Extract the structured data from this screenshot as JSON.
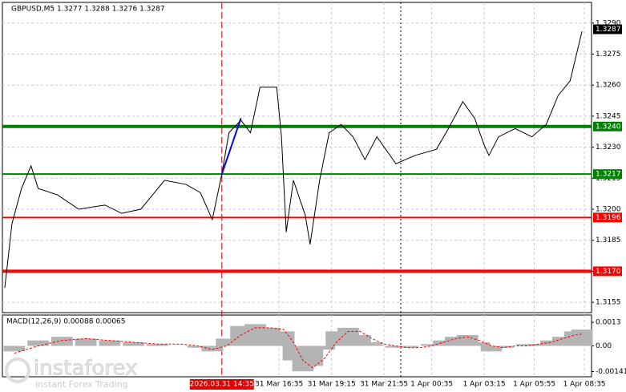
{
  "chart_data": {
    "type": "line",
    "title": "GBPUSD,M5  1.3277 1.3288 1.3276 1.3287",
    "xlim": [
      0,
      247
    ],
    "ylim": [
      1.315,
      1.33
    ],
    "x": [
      1,
      4,
      8,
      12,
      15,
      23,
      32,
      43,
      50,
      58,
      68,
      77,
      83,
      88,
      92,
      95,
      100,
      104,
      108,
      115,
      117,
      119,
      122,
      127,
      129,
      133,
      137,
      142,
      147,
      152,
      157,
      165,
      173,
      182,
      187,
      193,
      198,
      202,
      204,
      208,
      215,
      222,
      228,
      233,
      238,
      243
    ],
    "series": [
      {
        "name": "GBPUSD",
        "color": "#000000",
        "values": [
          1.3162,
          1.3193,
          1.321,
          1.3221,
          1.321,
          1.3207,
          1.32,
          1.3202,
          1.3198,
          1.32,
          1.3214,
          1.3212,
          1.3208,
          1.3195,
          1.3217,
          1.3237,
          1.3243,
          1.3237,
          1.3259,
          1.3259,
          1.3235,
          1.3189,
          1.3214,
          1.3197,
          1.3183,
          1.3214,
          1.3237,
          1.3241,
          1.3235,
          1.3224,
          1.3235,
          1.3222,
          1.3226,
          1.3229,
          1.3239,
          1.3252,
          1.3244,
          1.3231,
          1.3226,
          1.3235,
          1.3239,
          1.3235,
          1.3241,
          1.3255,
          1.3262,
          1.3286
        ]
      }
    ],
    "trend_line": {
      "color": "#0000ff",
      "x": [
        92,
        100
      ],
      "values": [
        1.3217,
        1.3244
      ]
    },
    "vlines": [
      {
        "x": 92,
        "color": "#e00000"
      },
      {
        "x": 167,
        "color": "#000000"
      }
    ],
    "levels": [
      {
        "values": 1.324,
        "value_labels": "1.3240",
        "color": "#008000",
        "width": 4
      },
      {
        "values": 1.3217,
        "value_labels": "1.3217",
        "color": "#008000",
        "width": 2
      },
      {
        "values": 1.3196,
        "value_labels": "1.3196",
        "color": "#ff0000",
        "width": 2
      },
      {
        "values": 1.317,
        "value_labels": "1.3170",
        "color": "#ff0000",
        "width": 4
      }
    ],
    "last_price": {
      "values": 1.3287,
      "value_labels": "1.3287"
    },
    "yticks": [
      {
        "value": 1.329,
        "label": "1.3290"
      },
      {
        "value": 1.3275,
        "label": "1.3275"
      },
      {
        "value": 1.326,
        "label": "1.3260"
      },
      {
        "value": 1.3245,
        "label": "1.3245"
      },
      {
        "value": 1.323,
        "label": "1.3230"
      },
      {
        "value": 1.3215,
        "label": "1.3215"
      },
      {
        "value": 1.32,
        "label": "1.3200"
      },
      {
        "value": 1.3185,
        "label": "1.3185"
      },
      {
        "value": 1.317,
        "label": "1.3170"
      },
      {
        "value": 1.3155,
        "label": "1.3155"
      }
    ],
    "xticks": [
      {
        "value": 92,
        "label": "2026.03.31 14:35"
      },
      {
        "value": 116,
        "label": "31 Mar 16:35"
      },
      {
        "value": 138,
        "label": "31 Mar 19:15"
      },
      {
        "value": 160,
        "label": "31 Mar 21:55"
      },
      {
        "value": 180,
        "label": "1 Apr 00:35"
      },
      {
        "value": 202,
        "label": "1 Apr 03:15"
      },
      {
        "value": 223,
        "label": "1 Apr 05:55"
      },
      {
        "value": 244,
        "label": "1 Apr 08:35"
      }
    ],
    "grid": true,
    "macd": {
      "title": "MACD(12,26,9) 0.00088 0.00065",
      "ylim": [
        -0.0017,
        0.0017
      ],
      "yticks": [
        {
          "value": 0.0013,
          "label": "0.0013"
        },
        {
          "value": 0,
          "label": "0.00"
        },
        {
          "value": -0.00141,
          "label": "-0.00141"
        }
      ],
      "x": [
        5,
        15,
        25,
        35,
        45,
        55,
        65,
        75,
        82,
        88,
        94,
        100,
        106,
        112,
        118,
        122,
        126,
        130,
        135,
        140,
        145,
        150,
        155,
        160,
        165,
        170,
        175,
        180,
        185,
        190,
        195,
        200,
        205,
        210,
        215,
        220,
        225,
        230,
        235,
        240,
        243
      ],
      "series": [
        {
          "name": "histogram",
          "color": "#b4b4b4",
          "values": [
            -0.0003,
            0.0003,
            0.0005,
            0.0004,
            0.0003,
            0.0002,
            0.0001,
            0.0,
            -0.0001,
            -0.0003,
            0.0004,
            0.0011,
            0.0012,
            0.001,
            0.0008,
            -0.0008,
            -0.0014,
            -0.0011,
            -0.0002,
            0.0008,
            0.001,
            0.0006,
            0.0002,
            0.0,
            -0.0001,
            -0.0001,
            0.0,
            0.0001,
            0.0003,
            0.0005,
            0.0006,
            0.0002,
            -0.0003,
            -0.0001,
            0.0,
            0.0001,
            0.0001,
            0.0003,
            0.0005,
            0.0008,
            0.0009
          ]
        },
        {
          "name": "signal",
          "color": "#ff0000",
          "values": [
            -0.0004,
            0.0,
            0.0003,
            0.0004,
            0.0003,
            0.0002,
            0.0001,
            0.0001,
            0.0,
            -0.0002,
            0.0,
            0.0006,
            0.001,
            0.001,
            0.0009,
            0.0002,
            -0.0008,
            -0.0012,
            -0.0007,
            0.0002,
            0.0008,
            0.0008,
            0.0004,
            0.0001,
            0.0,
            -0.0001,
            -0.0001,
            0.0,
            0.0002,
            0.0004,
            0.0005,
            0.0003,
            0.0,
            -0.0001,
            0.0,
            0.0,
            0.0001,
            0.0002,
            0.0004,
            0.0006,
            0.00065
          ]
        }
      ]
    },
    "watermark": {
      "brand": "instaforex",
      "tagline": "Instant Forex Trading"
    }
  }
}
